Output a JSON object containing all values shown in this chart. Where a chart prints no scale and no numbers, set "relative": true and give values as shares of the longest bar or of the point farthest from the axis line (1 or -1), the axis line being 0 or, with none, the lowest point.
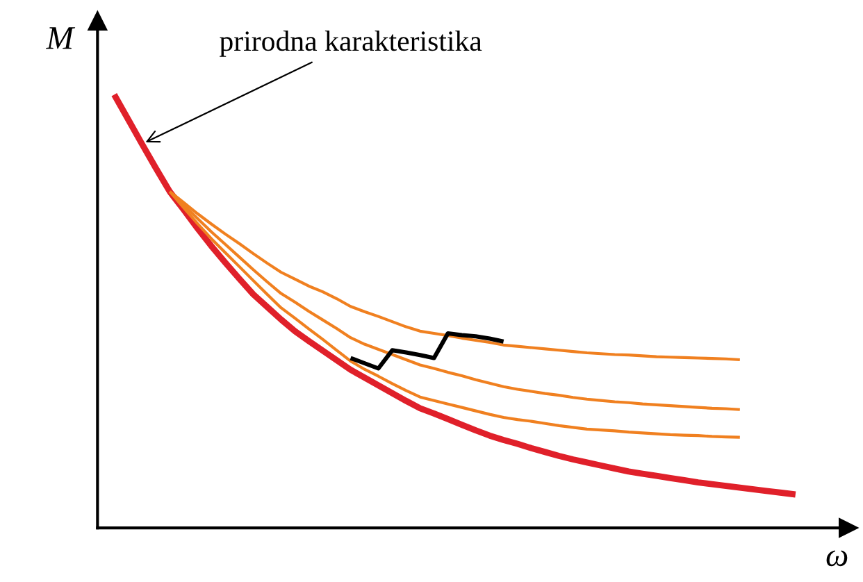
{
  "chart_data": {
    "type": "line",
    "relative": true,
    "xlabel": "ω",
    "ylabel": "M",
    "legend": false,
    "marker": "none",
    "line_style": "solid",
    "categories": [
      null,
      null,
      null,
      null,
      null,
      null,
      null,
      null,
      null,
      null,
      null,
      null,
      null,
      null,
      null,
      null,
      null,
      null,
      null,
      null,
      null,
      null,
      null,
      null,
      null,
      null,
      null,
      null,
      null,
      null,
      null,
      null,
      null,
      null,
      null,
      null,
      null,
      null,
      null,
      null,
      null,
      null,
      null,
      null,
      null,
      null,
      null,
      null,
      null,
      null
    ],
    "annotations": [
      "prirodna karakteristika"
    ],
    "series": [
      {
        "color": "#e0202a",
        "values": [
          1.0,
          0.943,
          0.886,
          0.83,
          0.776,
          0.734,
          0.691,
          0.65,
          0.612,
          0.575,
          0.539,
          0.51,
          0.481,
          0.454,
          0.431,
          0.409,
          0.387,
          0.365,
          0.347,
          0.329,
          0.311,
          0.293,
          0.276,
          0.264,
          0.251,
          0.238,
          0.225,
          0.213,
          0.203,
          0.194,
          0.184,
          0.175,
          0.166,
          0.158,
          0.151,
          0.144,
          0.137,
          0.13,
          0.125,
          0.12,
          0.115,
          0.11,
          0.105,
          0.101,
          0.097,
          0.093,
          0.089,
          0.085,
          0.081,
          0.077
        ]
      },
      {
        "color": "#f08020",
        "values": [
          null,
          null,
          null,
          null,
          0.776,
          0.751,
          0.725,
          0.701,
          0.678,
          0.656,
          0.633,
          0.611,
          0.59,
          0.574,
          0.558,
          0.545,
          0.529,
          0.511,
          0.499,
          0.488,
          0.476,
          0.464,
          0.454,
          0.449,
          0.444,
          0.438,
          0.433,
          0.428,
          0.422,
          0.419,
          0.416,
          0.413,
          0.41,
          0.407,
          0.404,
          0.402,
          0.4,
          0.399,
          0.397,
          0.395,
          0.394,
          0.393,
          0.392,
          0.391,
          0.39,
          0.388,
          null,
          null,
          null,
          null
        ]
      },
      {
        "color": "#f08020",
        "values": [
          null,
          null,
          null,
          null,
          0.776,
          0.745,
          0.714,
          0.683,
          0.654,
          0.625,
          0.596,
          0.568,
          0.541,
          0.521,
          0.5,
          0.48,
          0.46,
          0.439,
          0.424,
          0.412,
          0.4,
          0.388,
          0.376,
          0.368,
          0.359,
          0.351,
          0.342,
          0.334,
          0.326,
          0.32,
          0.315,
          0.31,
          0.306,
          0.301,
          0.297,
          0.294,
          0.291,
          0.289,
          0.286,
          0.284,
          0.282,
          0.28,
          0.278,
          0.276,
          0.275,
          0.273,
          null,
          null,
          null,
          null
        ]
      },
      {
        "color": "#f08020",
        "values": [
          null,
          null,
          null,
          null,
          0.776,
          0.739,
          0.702,
          0.667,
          0.635,
          0.603,
          0.571,
          0.539,
          0.508,
          0.484,
          0.459,
          0.435,
          0.41,
          0.385,
          0.366,
          0.35,
          0.333,
          0.317,
          0.302,
          0.294,
          0.286,
          0.278,
          0.27,
          0.262,
          0.255,
          0.25,
          0.246,
          0.241,
          0.236,
          0.232,
          0.228,
          0.226,
          0.224,
          0.221,
          0.219,
          0.217,
          0.215,
          0.214,
          0.213,
          0.211,
          0.21,
          0.209,
          null,
          null,
          null,
          null
        ]
      },
      {
        "color": "#000000",
        "values": [
          null,
          null,
          null,
          null,
          null,
          null,
          null,
          null,
          null,
          null,
          null,
          null,
          null,
          null,
          null,
          null,
          null,
          0.392,
          0.38,
          0.368,
          0.41,
          0.405,
          0.399,
          0.392,
          0.449,
          0.445,
          0.442,
          0.437,
          0.43,
          null,
          null,
          null,
          null,
          null,
          null,
          null,
          null,
          null,
          null,
          null,
          null,
          null,
          null,
          null,
          null,
          null,
          null,
          null,
          null,
          null
        ]
      }
    ]
  }
}
